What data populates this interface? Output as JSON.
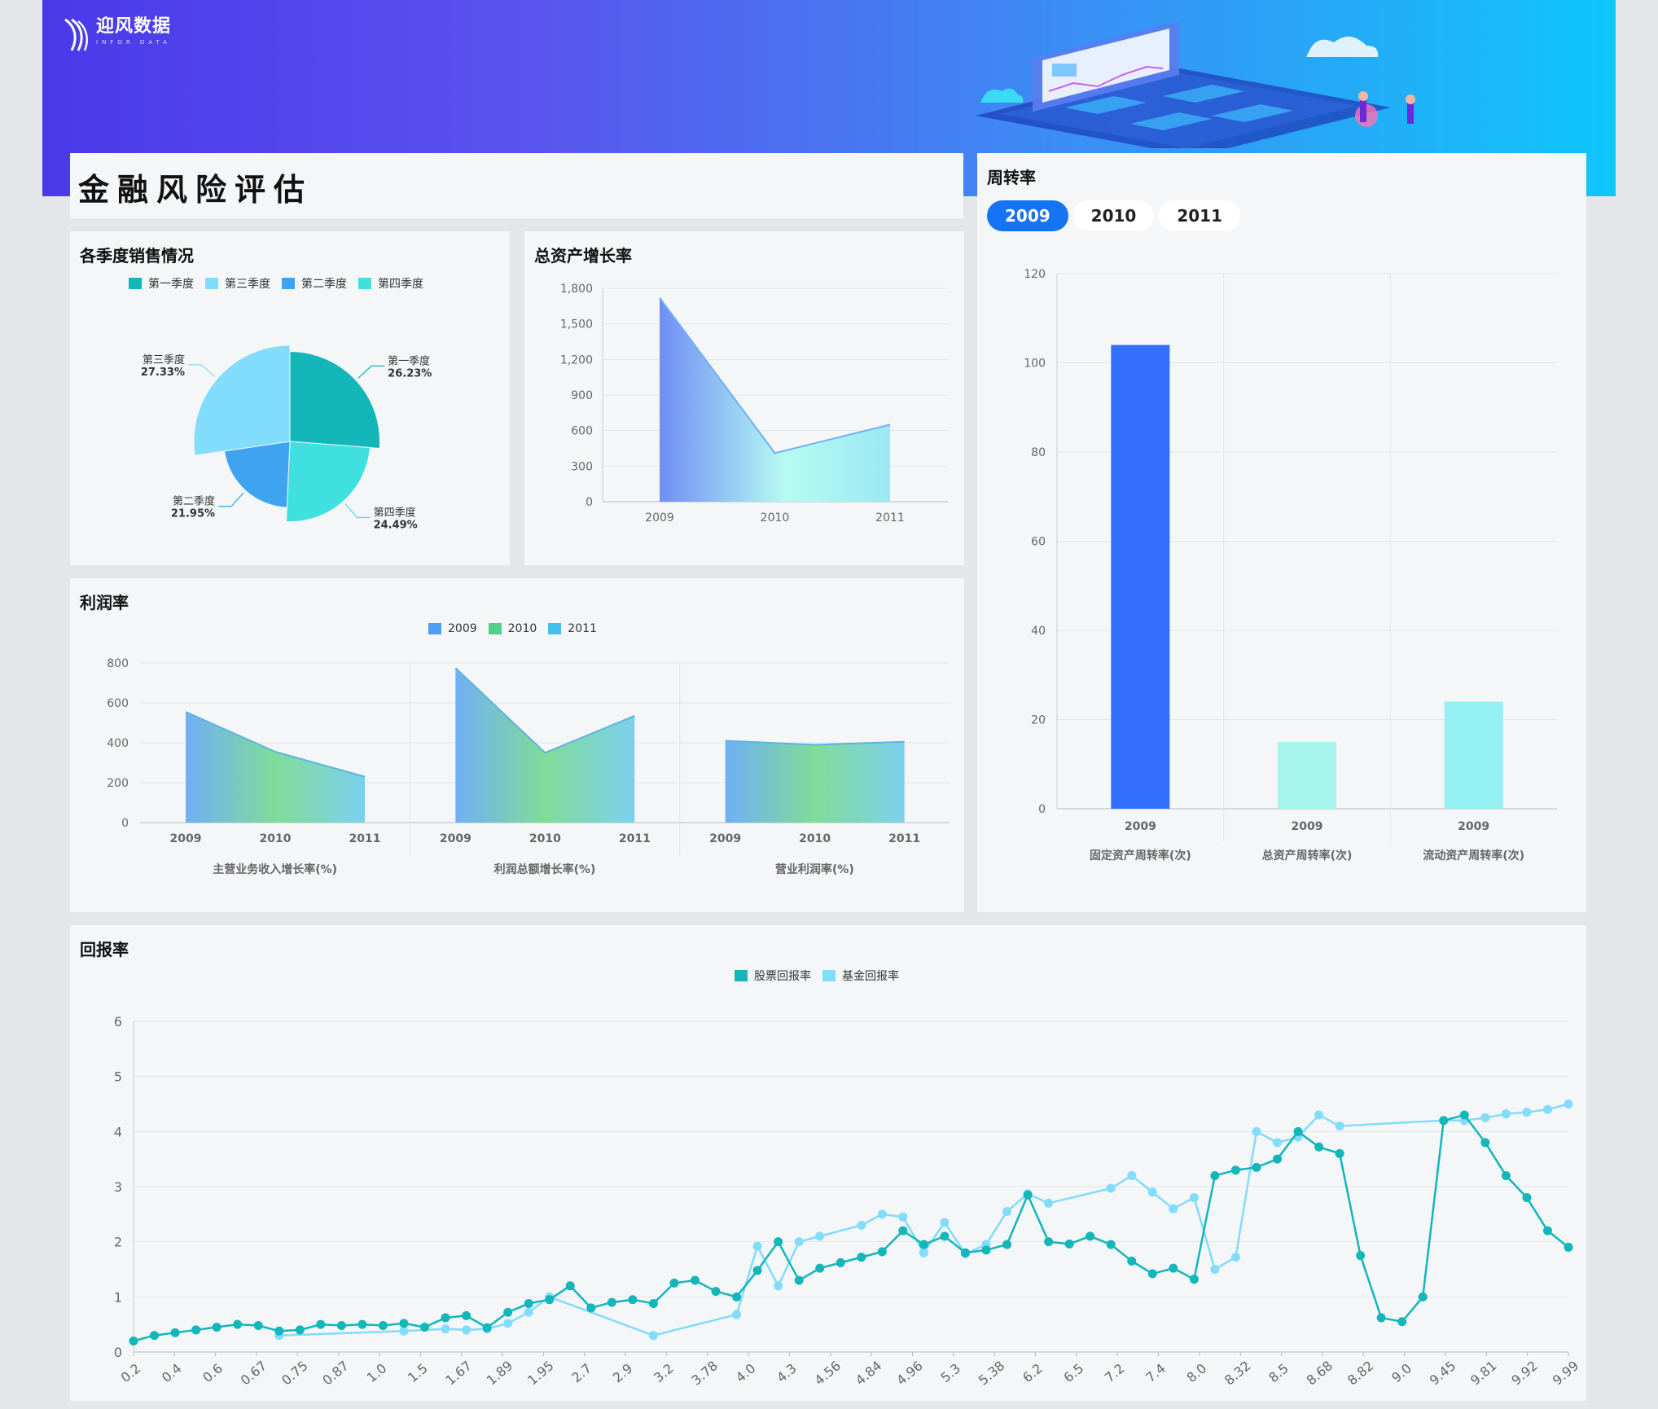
{
  "brand": {
    "name": "迎风数据",
    "subtitle": "INFOR DATA"
  },
  "page_title": "金融风险评估",
  "colors": {
    "teal": "#13b6b9",
    "light_blue": "#82dcfb",
    "blue": "#3ea3f0",
    "cyan": "#40e0e0",
    "accent": "#1574f3"
  },
  "pie_panel": {
    "title": "各季度销售情况",
    "legend": [
      "第一季度",
      "第三季度",
      "第二季度",
      "第四季度"
    ]
  },
  "asset_panel": {
    "title": "总资产增长率"
  },
  "profit_panel": {
    "title": "利润率",
    "legend": [
      "2009",
      "2010",
      "2011"
    ]
  },
  "turnover_panel": {
    "title": "周转率",
    "tabs": [
      "2009",
      "2010",
      "2011"
    ],
    "active_tab": "2009"
  },
  "return_panel": {
    "title": "回报率",
    "legend": [
      "股票回报率",
      "基金回报率"
    ]
  },
  "chart_data": [
    {
      "id": "quarterly_sales",
      "type": "pie",
      "title": "各季度销售情况",
      "style": "rose",
      "slices": [
        {
          "name": "第一季度",
          "value": 26.23,
          "label": "26.23%",
          "color": "#13b6b9"
        },
        {
          "name": "第四季度",
          "value": 24.49,
          "label": "24.49%",
          "color": "#40e0e0"
        },
        {
          "name": "第二季度",
          "value": 21.95,
          "label": "21.95%",
          "color": "#3ea3f0"
        },
        {
          "name": "第三季度",
          "value": 27.33,
          "label": "27.33%",
          "color": "#82dcfb"
        }
      ]
    },
    {
      "id": "total_asset_growth",
      "type": "area",
      "title": "总资产增长率",
      "categories": [
        "2009",
        "2010",
        "2011"
      ],
      "values": [
        1720,
        410,
        650
      ],
      "ylim": [
        0,
        1800
      ],
      "yticks": [
        "0",
        "300",
        "600",
        "900",
        "1,200",
        "1,500",
        "1,800"
      ]
    },
    {
      "id": "profit_rate",
      "type": "area",
      "title": "利润率",
      "groups": [
        {
          "name": "主营业务收入增长率(%)",
          "categories": [
            "2009",
            "2010",
            "2011"
          ],
          "values": [
            555,
            355,
            230
          ]
        },
        {
          "name": "利润总额增长率(%)",
          "categories": [
            "2009",
            "2010",
            "2011"
          ],
          "values": [
            775,
            350,
            535
          ]
        },
        {
          "name": "营业利润率(%)",
          "categories": [
            "2009",
            "2010",
            "2011"
          ],
          "values": [
            410,
            390,
            405
          ]
        }
      ],
      "ylim": [
        0,
        800
      ],
      "yticks": [
        "0",
        "200",
        "400",
        "600",
        "800"
      ]
    },
    {
      "id": "turnover",
      "type": "bar",
      "title": "周转率",
      "categories": [
        "固定资产周转率(次)",
        "总资产周转率(次)",
        "流动资产周转率(次)"
      ],
      "sublabels": [
        "2009",
        "2009",
        "2009"
      ],
      "values": [
        104,
        15,
        24
      ],
      "colors": [
        "#336ffd",
        "#a5f5ec",
        "#94f0f3"
      ],
      "ylim": [
        0,
        120
      ],
      "yticks": [
        "0",
        "20",
        "40",
        "60",
        "80",
        "100",
        "120"
      ]
    },
    {
      "id": "return_rate",
      "type": "line",
      "title": "回报率",
      "ylim": [
        0,
        6
      ],
      "yticks": [
        "0",
        "1",
        "2",
        "3",
        "4",
        "5",
        "6"
      ],
      "xticks": [
        "0.2",
        "0.4",
        "0.6",
        "0.67",
        "0.75",
        "0.87",
        "1.0",
        "1.5",
        "1.67",
        "1.89",
        "1.95",
        "2.7",
        "2.9",
        "3.2",
        "3.78",
        "4.0",
        "4.3",
        "4.56",
        "4.84",
        "4.96",
        "5.3",
        "5.38",
        "6.2",
        "6.5",
        "7.2",
        "7.4",
        "8.0",
        "8.32",
        "8.5",
        "8.68",
        "8.82",
        "9.0",
        "9.45",
        "9.81",
        "9.92",
        "9.99"
      ],
      "series": [
        {
          "name": "股票回报率",
          "color": "#13b6b9",
          "points": [
            [
              0,
              0.2
            ],
            [
              1,
              0.3
            ],
            [
              2,
              0.35
            ],
            [
              3,
              0.4
            ],
            [
              4,
              0.45
            ],
            [
              5,
              0.5
            ],
            [
              6,
              0.48
            ],
            [
              7,
              0.38
            ],
            [
              8,
              0.4
            ],
            [
              9,
              0.5
            ],
            [
              10,
              0.48
            ],
            [
              11,
              0.5
            ],
            [
              12,
              0.48
            ],
            [
              13,
              0.52
            ],
            [
              14,
              0.45
            ],
            [
              15,
              0.62
            ],
            [
              16,
              0.66
            ],
            [
              17,
              0.44
            ],
            [
              18,
              0.72
            ],
            [
              19,
              0.88
            ],
            [
              20,
              0.95
            ],
            [
              21,
              1.2
            ],
            [
              22,
              0.8
            ],
            [
              23,
              0.9
            ],
            [
              24,
              0.95
            ],
            [
              25,
              0.88
            ],
            [
              26,
              1.25
            ],
            [
              27,
              1.3
            ],
            [
              28,
              1.1
            ],
            [
              29,
              1.0
            ],
            [
              30,
              1.48
            ],
            [
              31,
              2.0
            ],
            [
              32,
              1.3
            ],
            [
              33,
              1.52
            ],
            [
              34,
              1.62
            ],
            [
              35,
              1.72
            ],
            [
              36,
              1.82
            ],
            [
              37,
              2.2
            ],
            [
              38,
              1.95
            ],
            [
              39,
              2.1
            ],
            [
              40,
              1.8
            ],
            [
              41,
              1.85
            ],
            [
              42,
              1.95
            ],
            [
              43,
              2.85
            ],
            [
              44,
              2.0
            ],
            [
              45,
              1.96
            ],
            [
              46,
              2.1
            ],
            [
              47,
              1.95
            ],
            [
              48,
              1.65
            ],
            [
              49,
              1.42
            ],
            [
              50,
              1.52
            ],
            [
              51,
              1.32
            ],
            [
              52,
              3.2
            ],
            [
              53,
              3.3
            ],
            [
              54,
              3.35
            ],
            [
              55,
              3.5
            ],
            [
              56,
              4.0
            ],
            [
              57,
              3.72
            ],
            [
              58,
              3.6
            ],
            [
              59,
              1.75
            ],
            [
              60,
              0.62
            ],
            [
              61,
              0.55
            ],
            [
              62,
              1.0
            ],
            [
              63,
              4.2
            ],
            [
              64,
              4.3
            ],
            [
              65,
              3.8
            ],
            [
              66,
              3.2
            ],
            [
              67,
              2.8
            ],
            [
              68,
              2.2
            ],
            [
              69,
              1.9
            ]
          ]
        },
        {
          "name": "基金回报率",
          "color": "#82dcfb",
          "points": [
            [
              7,
              0.3
            ],
            [
              13,
              0.38
            ],
            [
              15,
              0.42
            ],
            [
              16,
              0.4
            ],
            [
              17,
              0.42
            ],
            [
              18,
              0.52
            ],
            [
              19,
              0.72
            ],
            [
              20,
              1.0
            ],
            [
              25,
              0.3
            ],
            [
              29,
              0.68
            ],
            [
              30,
              1.92
            ],
            [
              31,
              1.2
            ],
            [
              32,
              2.0
            ],
            [
              33,
              2.1
            ],
            [
              35,
              2.3
            ],
            [
              36,
              2.5
            ],
            [
              37,
              2.45
            ],
            [
              38,
              1.8
            ],
            [
              39,
              2.35
            ],
            [
              40,
              1.78
            ],
            [
              41,
              1.95
            ],
            [
              42,
              2.55
            ],
            [
              43,
              2.87
            ],
            [
              44,
              2.7
            ],
            [
              47,
              2.97
            ],
            [
              48,
              3.2
            ],
            [
              49,
              2.9
            ],
            [
              50,
              2.6
            ],
            [
              51,
              2.8
            ],
            [
              52,
              1.5
            ],
            [
              53,
              1.72
            ],
            [
              54,
              4.0
            ],
            [
              55,
              3.8
            ],
            [
              56,
              3.9
            ],
            [
              57,
              4.3
            ],
            [
              58,
              4.1
            ],
            [
              63,
              4.2
            ],
            [
              64,
              4.2
            ],
            [
              65,
              4.25
            ],
            [
              66,
              4.32
            ],
            [
              67,
              4.35
            ],
            [
              68,
              4.4
            ],
            [
              69,
              4.5
            ]
          ]
        }
      ]
    }
  ]
}
